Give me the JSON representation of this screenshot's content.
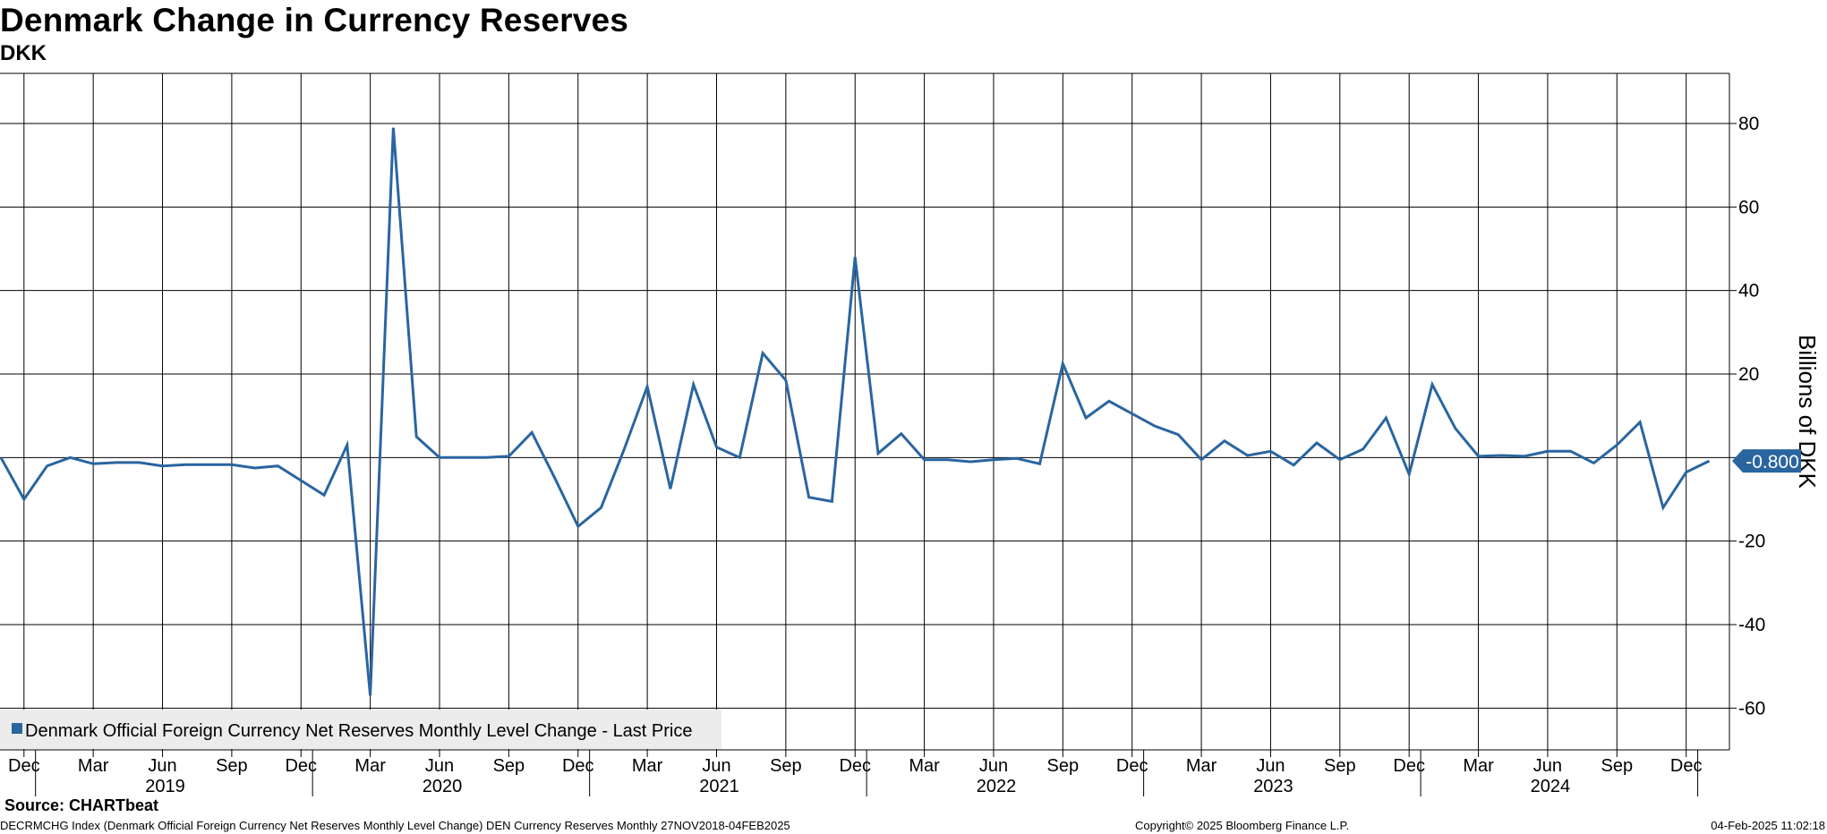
{
  "header": {
    "title": "Denmark Change in Currency Reserves",
    "subtitle": "DKK"
  },
  "chart_data": {
    "type": "line",
    "title": "Denmark Change in Currency Reserves",
    "subtitle": "DKK",
    "ylabel": "Billions of DKK",
    "y_position": "right",
    "ylim": [
      -70,
      92
    ],
    "yticks": [
      -60,
      -40,
      -20,
      0,
      20,
      40,
      60,
      80
    ],
    "grid": true,
    "legend": {
      "position": "bottom-left",
      "label": "Denmark Official Foreign Currency Net Reserves Monthly Level Change - Last Price"
    },
    "last_value_label": "-0.800",
    "series_color": "#2a65a0",
    "month_ticks": [
      "Dec",
      "Mar",
      "Jun",
      "Sep",
      "Dec",
      "Mar",
      "Jun",
      "Sep",
      "Dec",
      "Mar",
      "Jun",
      "Sep",
      "Dec",
      "Mar",
      "Jun",
      "Sep",
      "Dec",
      "Mar",
      "Jun",
      "Sep",
      "Dec",
      "Mar",
      "Jun",
      "Sep",
      "Dec"
    ],
    "year_ticks": [
      "2019",
      "2020",
      "2021",
      "2022",
      "2023",
      "2024"
    ],
    "x_start": "2018-11",
    "series": [
      {
        "name": "Denmark Official Foreign Currency Net Reserves Monthly Level Change - Last Price",
        "frequency": "monthly",
        "values": [
          0,
          -10,
          -2,
          0,
          -1.5,
          -1.2,
          -1.2,
          -2,
          -1.7,
          -1.7,
          -1.7,
          -2.5,
          -2,
          -5.5,
          -9,
          3,
          -57,
          79,
          5,
          0,
          0,
          0,
          0.3,
          6,
          -5,
          -16.5,
          -12,
          2,
          17,
          -7.5,
          17.5,
          2.5,
          0,
          25,
          18.5,
          -9.5,
          -10.5,
          48,
          1,
          5.7,
          -0.5,
          -0.5,
          -1,
          -0.5,
          -0.2,
          -1.5,
          22.5,
          9.5,
          13.5,
          10.5,
          7.5,
          5.5,
          -0.5,
          4,
          0.5,
          1.5,
          -1.8,
          3.5,
          -0.5,
          2,
          9.5,
          -4,
          17.5,
          7,
          0.3,
          0.5,
          0.3,
          1.5,
          1.5,
          -1.3,
          3,
          8.5,
          -12,
          -3.5,
          -0.8
        ]
      }
    ]
  },
  "footer": {
    "source": "Source: CHARTbeat",
    "description": "DECRMCHG Index (Denmark Official Foreign Currency Net Reserves Monthly Level Change) DEN Currency Reserves  Monthly 27NOV2018-04FEB2025",
    "copyright": "Copyright© 2025 Bloomberg Finance L.P.",
    "timestamp": "04-Feb-2025 11:02:18"
  }
}
